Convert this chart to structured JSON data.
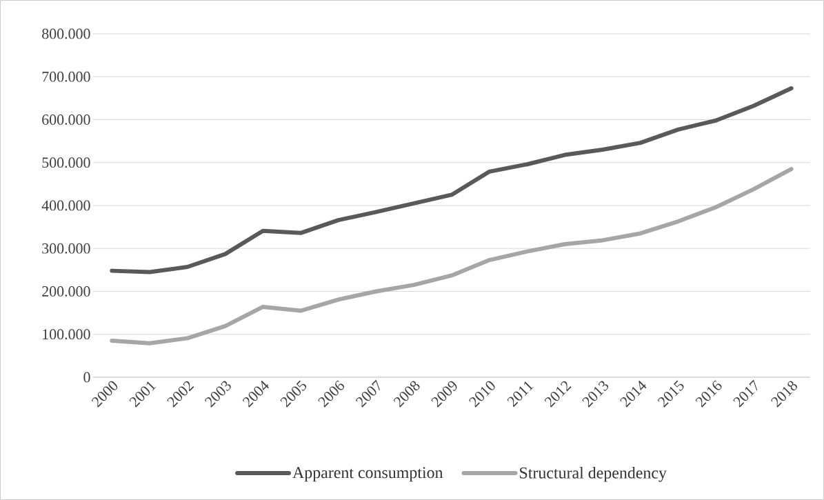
{
  "chart_data": {
    "type": "line",
    "categories": [
      "2000",
      "2001",
      "2002",
      "2003",
      "2004",
      "2005",
      "2006",
      "2007",
      "2008",
      "2009",
      "2010",
      "2011",
      "2012",
      "2013",
      "2014",
      "2015",
      "2016",
      "2017",
      "2018"
    ],
    "series": [
      {
        "name": "Apparent consumption",
        "color": "#595959",
        "values": [
          248000,
          245000,
          257000,
          287000,
          341000,
          336000,
          366000,
          385000,
          405000,
          425000,
          479000,
          496000,
          518000,
          530000,
          546000,
          577000,
          598000,
          632000,
          673000
        ]
      },
      {
        "name": "Structural dependency",
        "color": "#a6a6a6",
        "values": [
          85000,
          79000,
          91000,
          119000,
          164000,
          155000,
          181000,
          200000,
          215000,
          237000,
          273000,
          293000,
          310000,
          319000,
          335000,
          363000,
          396000,
          438000,
          485000
        ]
      }
    ],
    "ylim": [
      0,
      800000
    ],
    "yticks": [
      0,
      {
        "value": 100000,
        "label": "100.000"
      },
      {
        "value": 200000,
        "label": "200.000"
      },
      {
        "value": 300000,
        "label": "300.000"
      },
      {
        "value": 400000,
        "label": "400.000"
      },
      {
        "value": 500000,
        "label": "500.000"
      },
      {
        "value": 600000,
        "label": "600.000"
      },
      {
        "value": 700000,
        "label": "700.000"
      },
      {
        "value": 800000,
        "label": "800.000"
      }
    ],
    "grid": "y",
    "legend": "bottom",
    "marker": "none",
    "line_style": "solid"
  }
}
